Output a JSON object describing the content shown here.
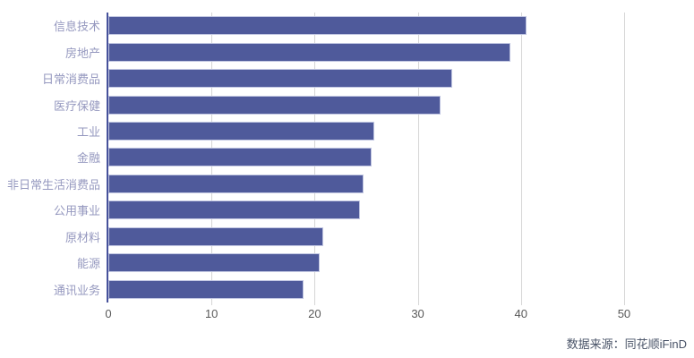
{
  "chart_data": {
    "type": "bar",
    "orientation": "horizontal",
    "title": "",
    "xlabel": "",
    "ylabel": "",
    "categories": [
      "信息技术",
      "房地产",
      "日常消费品",
      "医疗保健",
      "工业",
      "金融",
      "非日常生活消费品",
      "公用事业",
      "原材料",
      "能源",
      "通讯业务"
    ],
    "values": [
      40.5,
      39.0,
      33.3,
      32.2,
      25.8,
      25.5,
      24.7,
      24.4,
      20.8,
      20.5,
      18.9
    ],
    "x_ticks": [
      0,
      10,
      20,
      30,
      40,
      50
    ],
    "xlim": [
      0,
      55.3
    ],
    "grid": "vertical-gridlines",
    "legend": "none"
  },
  "footer": {
    "source_label": "数据来源：同花顺iFinD"
  },
  "colors": {
    "background": "#ffffff",
    "bar_fill": "#4f5a9b",
    "bar_border": "#c2c7e2",
    "axis_line": "#46519b",
    "gridline": "#d5d5d5",
    "category_label": "#9598bf",
    "tick_label": "#595959",
    "source_text": "#4a5468"
  }
}
